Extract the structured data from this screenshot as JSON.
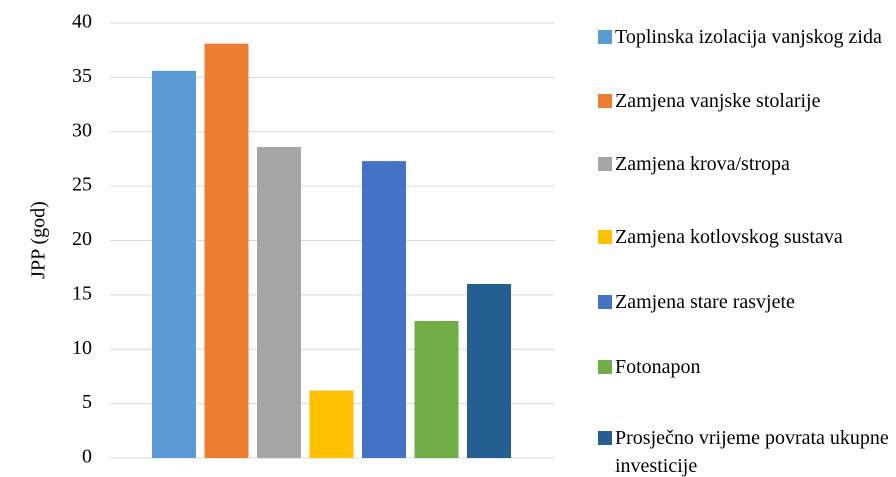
{
  "chart_data": {
    "type": "bar",
    "ylabel": "JPP (god)",
    "categories": [
      null
    ],
    "series": [
      {
        "name": "Toplinska izolacija vanjskog zida",
        "color": "#5b9bd5",
        "values": [
          35.6
        ]
      },
      {
        "name": "Zamjena vanjske stolarije",
        "color": "#ed7d31",
        "values": [
          38.1
        ]
      },
      {
        "name": "Zamjena krova/stropa",
        "color": "#a5a5a5",
        "values": [
          28.6
        ]
      },
      {
        "name": "Zamjena kotlovskog sustava",
        "color": "#ffc000",
        "values": [
          6.2
        ]
      },
      {
        "name": "Zamjena stare rasvjete",
        "color": "#4472c4",
        "values": [
          27.3
        ]
      },
      {
        "name": "Fotonapon",
        "color": "#70ad47",
        "values": [
          12.6
        ]
      },
      {
        "name": "Prosječno vrijeme povrata ukupne investicije",
        "color": "#255e91",
        "values": [
          16.0
        ]
      }
    ],
    "ylim": [
      0,
      40
    ],
    "yticks": [
      0,
      5,
      10,
      15,
      20,
      25,
      30,
      35,
      40
    ],
    "grid": true,
    "legend": "right"
  }
}
